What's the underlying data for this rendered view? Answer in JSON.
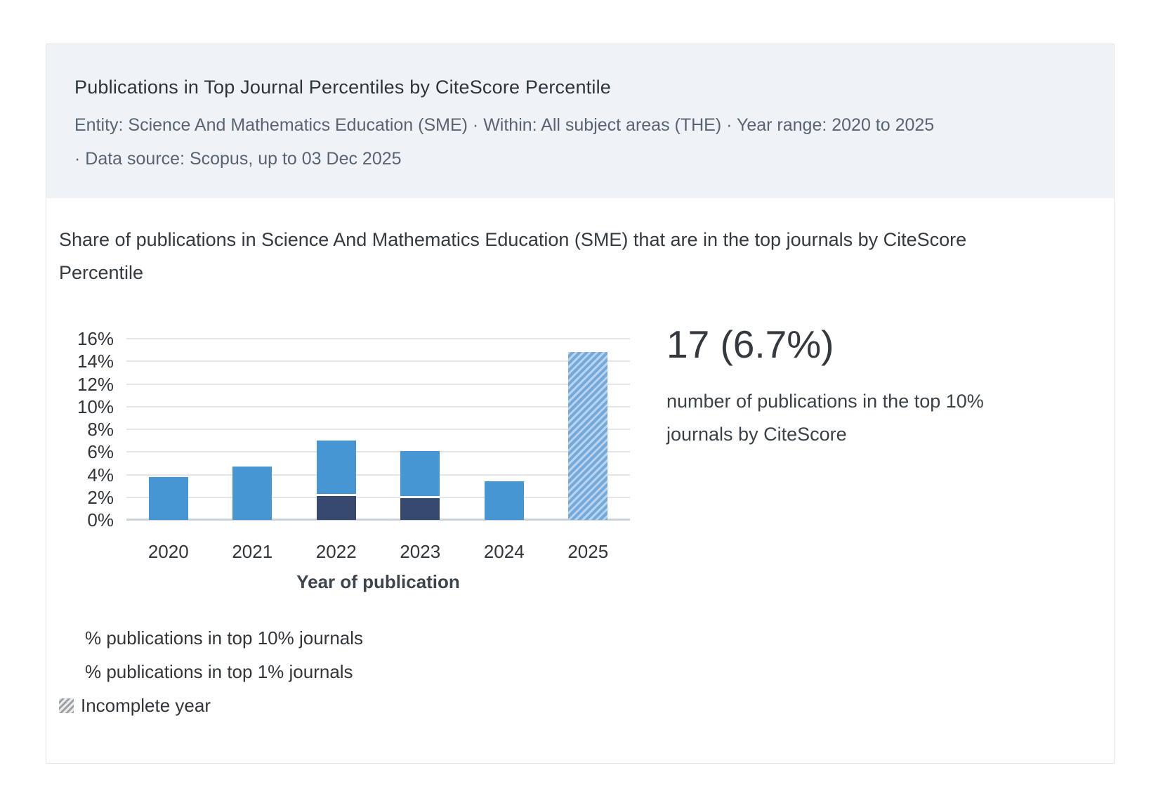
{
  "header": {
    "title": "Publications in Top Journal Percentiles by CiteScore Percentile",
    "subtitle_line1": "Entity: Science And Mathematics Education (SME)  ·  Within: All subject areas (THE)  ·  Year range: 2020 to 2025",
    "subtitle_line2": "·  Data source: Scopus, up to 03 Dec 2025"
  },
  "description": "Share of publications in Science And Mathematics Education (SME) that are in the top journals by CiteScore Percentile",
  "stat": {
    "value": "17 (6.7%)",
    "caption": "number of publications in the top 10% journals by CiteScore"
  },
  "legend": {
    "top10_label": "% publications in top 10% journals",
    "top1_label": "% publications in top 1% journals",
    "incomplete_label": "Incomplete year",
    "incomplete_icon": "diagonal-hatch-swatch"
  },
  "chart_data": {
    "type": "bar",
    "title": "Share of publications in Science And Mathematics Education (SME) that are in the top journals by CiteScore Percentile",
    "xlabel": "Year of publication",
    "ylabel": "",
    "categories": [
      "2020",
      "2021",
      "2022",
      "2023",
      "2024",
      "2025"
    ],
    "series": [
      {
        "name": "% publications in top 10% journals",
        "values": [
          3.8,
          4.7,
          7.0,
          6.1,
          3.4,
          14.8
        ]
      },
      {
        "name": "% publications in top 1% journals",
        "values": [
          0,
          0,
          2.3,
          2.1,
          0,
          0
        ]
      }
    ],
    "incomplete_years": [
      "2025"
    ],
    "ylim": [
      0,
      16
    ],
    "ytick_step": 2,
    "ytick_suffix": "%",
    "grid": true,
    "legend_position": "bottom-left",
    "colors": {
      "top10_bar": "#4596d3",
      "top1_bar": "#37496f",
      "hatch_light": "#bad3ee",
      "hatch_dark": "#74a9dc",
      "header_bg": "#eff3f8",
      "gridline": "#e5e5e5",
      "axis_line": "#ccd3da"
    }
  }
}
